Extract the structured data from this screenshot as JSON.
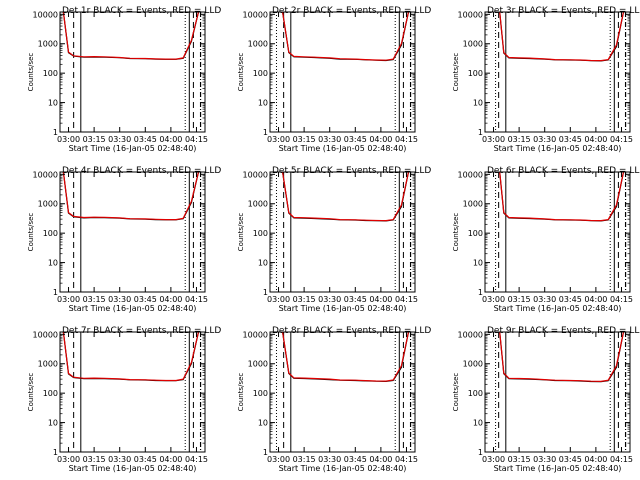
{
  "panels": [
    {
      "title": "Det 1r BLACK = Events, RED = LLD",
      "dotted_x": null,
      "events": [
        [
          2.95,
          12000
        ],
        [
          3.0,
          500
        ],
        [
          3.05,
          380
        ],
        [
          3.15,
          350
        ],
        [
          3.25,
          355
        ],
        [
          3.35,
          350
        ],
        [
          3.5,
          335
        ],
        [
          3.6,
          315
        ],
        [
          3.75,
          310
        ],
        [
          3.85,
          300
        ],
        [
          3.95,
          295
        ],
        [
          4.05,
          295
        ],
        [
          4.12,
          320
        ],
        [
          4.2,
          1200
        ],
        [
          4.27,
          12000
        ]
      ],
      "lld": [
        [
          2.95,
          12000
        ],
        [
          3.0,
          520
        ],
        [
          3.05,
          390
        ],
        [
          3.15,
          360
        ],
        [
          3.25,
          365
        ],
        [
          3.35,
          360
        ],
        [
          3.5,
          340
        ],
        [
          3.6,
          320
        ],
        [
          3.75,
          315
        ],
        [
          3.85,
          305
        ],
        [
          3.95,
          300
        ],
        [
          4.05,
          300
        ],
        [
          4.12,
          330
        ],
        [
          4.2,
          1300
        ],
        [
          4.27,
          12000
        ]
      ]
    },
    {
      "title": "Det 2r BLACK = Events, RED = LLD",
      "dotted_x": 2.98,
      "events": [
        [
          3.04,
          12000
        ],
        [
          3.1,
          500
        ],
        [
          3.15,
          360
        ],
        [
          3.25,
          350
        ],
        [
          3.35,
          340
        ],
        [
          3.5,
          320
        ],
        [
          3.6,
          300
        ],
        [
          3.75,
          295
        ],
        [
          3.85,
          285
        ],
        [
          3.95,
          275
        ],
        [
          4.05,
          270
        ],
        [
          4.12,
          290
        ],
        [
          4.2,
          900
        ],
        [
          4.27,
          12000
        ]
      ],
      "lld": [
        [
          3.04,
          12000
        ],
        [
          3.1,
          520
        ],
        [
          3.15,
          370
        ],
        [
          3.25,
          360
        ],
        [
          3.35,
          350
        ],
        [
          3.5,
          330
        ],
        [
          3.6,
          310
        ],
        [
          3.75,
          300
        ],
        [
          3.85,
          290
        ],
        [
          3.95,
          280
        ],
        [
          4.05,
          275
        ],
        [
          4.12,
          300
        ],
        [
          4.2,
          1000
        ],
        [
          4.27,
          12000
        ]
      ]
    },
    {
      "title": "Det 3r BLACK = Events, RED = LLD",
      "dotted_x": 3.02,
      "events": [
        [
          3.06,
          12000
        ],
        [
          3.1,
          480
        ],
        [
          3.15,
          330
        ],
        [
          3.25,
          320
        ],
        [
          3.35,
          315
        ],
        [
          3.5,
          300
        ],
        [
          3.6,
          285
        ],
        [
          3.75,
          280
        ],
        [
          3.85,
          275
        ],
        [
          3.95,
          265
        ],
        [
          4.05,
          262
        ],
        [
          4.12,
          280
        ],
        [
          4.2,
          800
        ],
        [
          4.27,
          12000
        ]
      ],
      "lld": [
        [
          3.06,
          12000
        ],
        [
          3.1,
          500
        ],
        [
          3.15,
          340
        ],
        [
          3.25,
          330
        ],
        [
          3.35,
          325
        ],
        [
          3.5,
          305
        ],
        [
          3.6,
          290
        ],
        [
          3.75,
          285
        ],
        [
          3.85,
          280
        ],
        [
          3.95,
          270
        ],
        [
          4.05,
          268
        ],
        [
          4.12,
          290
        ],
        [
          4.2,
          900
        ],
        [
          4.27,
          12000
        ]
      ]
    },
    {
      "title": "Det 4r BLACK = Events, RED = LLD",
      "dotted_x": null,
      "events": [
        [
          2.95,
          12000
        ],
        [
          3.0,
          480
        ],
        [
          3.05,
          360
        ],
        [
          3.15,
          330
        ],
        [
          3.25,
          340
        ],
        [
          3.35,
          335
        ],
        [
          3.5,
          325
        ],
        [
          3.6,
          305
        ],
        [
          3.75,
          300
        ],
        [
          3.85,
          290
        ],
        [
          3.95,
          285
        ],
        [
          4.05,
          285
        ],
        [
          4.12,
          310
        ],
        [
          4.2,
          1100
        ],
        [
          4.27,
          12000
        ]
      ],
      "lld": [
        [
          2.95,
          12000
        ],
        [
          3.0,
          500
        ],
        [
          3.05,
          370
        ],
        [
          3.15,
          340
        ],
        [
          3.25,
          350
        ],
        [
          3.35,
          345
        ],
        [
          3.5,
          330
        ],
        [
          3.6,
          310
        ],
        [
          3.75,
          305
        ],
        [
          3.85,
          295
        ],
        [
          3.95,
          290
        ],
        [
          4.05,
          290
        ],
        [
          4.12,
          320
        ],
        [
          4.2,
          1200
        ],
        [
          4.27,
          12000
        ]
      ]
    },
    {
      "title": "Det 5r BLACK = Events, RED = LLD",
      "dotted_x": 2.98,
      "events": [
        [
          3.04,
          12000
        ],
        [
          3.1,
          480
        ],
        [
          3.15,
          330
        ],
        [
          3.25,
          325
        ],
        [
          3.35,
          315
        ],
        [
          3.5,
          300
        ],
        [
          3.6,
          285
        ],
        [
          3.75,
          280
        ],
        [
          3.85,
          270
        ],
        [
          3.95,
          265
        ],
        [
          4.05,
          262
        ],
        [
          4.12,
          280
        ],
        [
          4.2,
          800
        ],
        [
          4.27,
          12000
        ]
      ],
      "lld": [
        [
          3.04,
          12000
        ],
        [
          3.1,
          500
        ],
        [
          3.15,
          340
        ],
        [
          3.25,
          335
        ],
        [
          3.35,
          325
        ],
        [
          3.5,
          310
        ],
        [
          3.6,
          290
        ],
        [
          3.75,
          285
        ],
        [
          3.85,
          275
        ],
        [
          3.95,
          270
        ],
        [
          4.05,
          268
        ],
        [
          4.12,
          290
        ],
        [
          4.2,
          900
        ],
        [
          4.27,
          12000
        ]
      ]
    },
    {
      "title": "Det 6r BLACK = Events, RED = LLD",
      "dotted_x": 3.02,
      "events": [
        [
          3.06,
          12000
        ],
        [
          3.1,
          480
        ],
        [
          3.15,
          330
        ],
        [
          3.25,
          320
        ],
        [
          3.35,
          315
        ],
        [
          3.5,
          300
        ],
        [
          3.6,
          285
        ],
        [
          3.75,
          280
        ],
        [
          3.85,
          275
        ],
        [
          3.95,
          265
        ],
        [
          4.05,
          262
        ],
        [
          4.12,
          280
        ],
        [
          4.2,
          800
        ],
        [
          4.27,
          12000
        ]
      ],
      "lld": [
        [
          3.06,
          12000
        ],
        [
          3.1,
          500
        ],
        [
          3.15,
          340
        ],
        [
          3.25,
          330
        ],
        [
          3.35,
          325
        ],
        [
          3.5,
          305
        ],
        [
          3.6,
          290
        ],
        [
          3.75,
          285
        ],
        [
          3.85,
          280
        ],
        [
          3.95,
          270
        ],
        [
          4.05,
          268
        ],
        [
          4.12,
          290
        ],
        [
          4.2,
          900
        ],
        [
          4.27,
          12000
        ]
      ]
    },
    {
      "title": "Det 7r BLACK = Events, RED = LLD",
      "dotted_x": null,
      "events": [
        [
          2.95,
          12000
        ],
        [
          3.0,
          450
        ],
        [
          3.05,
          340
        ],
        [
          3.15,
          310
        ],
        [
          3.25,
          315
        ],
        [
          3.35,
          310
        ],
        [
          3.5,
          300
        ],
        [
          3.6,
          285
        ],
        [
          3.75,
          280
        ],
        [
          3.85,
          270
        ],
        [
          3.95,
          265
        ],
        [
          4.05,
          265
        ],
        [
          4.12,
          290
        ],
        [
          4.2,
          1000
        ],
        [
          4.27,
          12000
        ]
      ],
      "lld": [
        [
          2.95,
          12000
        ],
        [
          3.0,
          470
        ],
        [
          3.05,
          350
        ],
        [
          3.15,
          320
        ],
        [
          3.25,
          325
        ],
        [
          3.35,
          320
        ],
        [
          3.5,
          305
        ],
        [
          3.6,
          290
        ],
        [
          3.75,
          285
        ],
        [
          3.85,
          275
        ],
        [
          3.95,
          270
        ],
        [
          4.05,
          270
        ],
        [
          4.12,
          300
        ],
        [
          4.2,
          1100
        ],
        [
          4.27,
          12000
        ]
      ]
    },
    {
      "title": "Det 8r BLACK = Events, RED = LLD",
      "dotted_x": 2.98,
      "events": [
        [
          3.04,
          12000
        ],
        [
          3.1,
          470
        ],
        [
          3.15,
          320
        ],
        [
          3.25,
          315
        ],
        [
          3.35,
          305
        ],
        [
          3.5,
          290
        ],
        [
          3.6,
          275
        ],
        [
          3.75,
          270
        ],
        [
          3.85,
          262
        ],
        [
          3.95,
          255
        ],
        [
          4.05,
          252
        ],
        [
          4.12,
          270
        ],
        [
          4.2,
          750
        ],
        [
          4.27,
          12000
        ]
      ],
      "lld": [
        [
          3.04,
          12000
        ],
        [
          3.1,
          490
        ],
        [
          3.15,
          330
        ],
        [
          3.25,
          325
        ],
        [
          3.35,
          315
        ],
        [
          3.5,
          300
        ],
        [
          3.6,
          280
        ],
        [
          3.75,
          275
        ],
        [
          3.85,
          268
        ],
        [
          3.95,
          260
        ],
        [
          4.05,
          258
        ],
        [
          4.12,
          280
        ],
        [
          4.2,
          850
        ],
        [
          4.27,
          12000
        ]
      ]
    },
    {
      "title": "Det 9r BLACK = Events, RED = LLD",
      "dotted_x": 3.02,
      "events": [
        [
          3.06,
          12000
        ],
        [
          3.1,
          460
        ],
        [
          3.15,
          310
        ],
        [
          3.25,
          305
        ],
        [
          3.35,
          300
        ],
        [
          3.5,
          285
        ],
        [
          3.6,
          270
        ],
        [
          3.75,
          265
        ],
        [
          3.85,
          260
        ],
        [
          3.95,
          250
        ],
        [
          4.05,
          248
        ],
        [
          4.12,
          265
        ],
        [
          4.2,
          750
        ],
        [
          4.27,
          12000
        ]
      ],
      "lld": [
        [
          3.06,
          12000
        ],
        [
          3.1,
          480
        ],
        [
          3.15,
          320
        ],
        [
          3.25,
          315
        ],
        [
          3.35,
          310
        ],
        [
          3.5,
          290
        ],
        [
          3.6,
          275
        ],
        [
          3.75,
          270
        ],
        [
          3.85,
          265
        ],
        [
          3.95,
          255
        ],
        [
          4.05,
          252
        ],
        [
          4.12,
          275
        ],
        [
          4.2,
          850
        ],
        [
          4.27,
          12000
        ]
      ]
    }
  ],
  "common": {
    "xlabel": "Start Time (16-Jan-05 02:48:40)",
    "ylabel": "Counts/sec",
    "xlim": [
      2.9167,
      4.3333
    ],
    "ylim": [
      1,
      12000
    ],
    "xticks": [
      3.0,
      3.25,
      3.5,
      3.75,
      4.0,
      4.25
    ],
    "xticklabels": [
      "03:00",
      "03:15",
      "03:30",
      "03:45",
      "04:00",
      "04:15"
    ],
    "yticks": [
      1,
      10,
      100,
      1000,
      10000
    ],
    "yticklabels": [
      "1",
      "10",
      "100",
      "1000",
      "10000"
    ],
    "solid_verticals_x": [
      3.12,
      4.18
    ],
    "dashed_verticals_x": [
      3.05,
      4.22
    ],
    "dotted_right_x": 4.14,
    "dashdot_x": 4.29,
    "colors": {
      "events": "#000000",
      "lld": "#e00000"
    },
    "yscale": "log"
  }
}
